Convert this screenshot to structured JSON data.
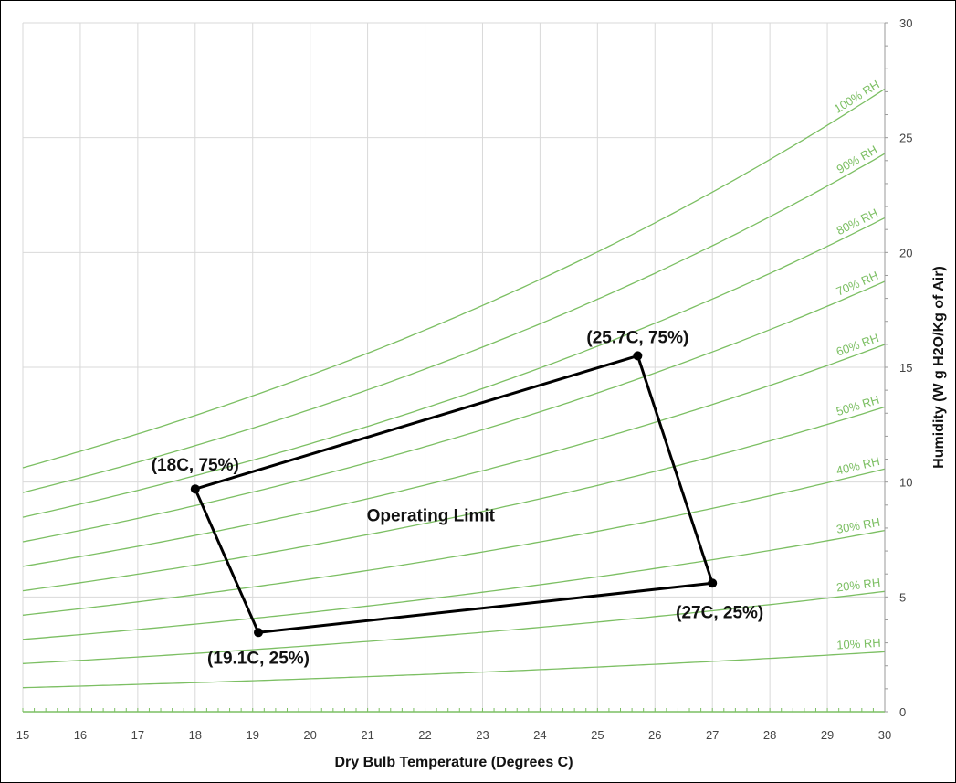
{
  "chart_data": {
    "type": "line",
    "title": "",
    "xlabel": "Dry Bulb Temperature  (Degrees C)",
    "ylabel": "Humidity (W g H2O/Kg of Air)",
    "xlim": [
      15,
      30
    ],
    "ylim": [
      0,
      30
    ],
    "x_ticks": [
      "15",
      "16",
      "17",
      "18",
      "19",
      "20",
      "21",
      "22",
      "23",
      "24",
      "25",
      "26",
      "27",
      "28",
      "29",
      "30"
    ],
    "y_ticks": [
      "0",
      "5",
      "10",
      "15",
      "20",
      "25",
      "30"
    ],
    "grid": true,
    "y_axis_side": "right",
    "curve_color": "#7cbf63",
    "region_color": "#000000",
    "rh_curves": [
      {
        "label": "10% RH",
        "rh": 0.1,
        "values": [
          1.05,
          2.67
        ]
      },
      {
        "label": "20% RH",
        "rh": 0.2,
        "values": [
          2.12,
          5.37
        ]
      },
      {
        "label": "30% RH",
        "rh": 0.3,
        "values": [
          3.18,
          8.1
        ]
      },
      {
        "label": "40% RH",
        "rh": 0.4,
        "values": [
          4.25,
          10.87
        ]
      },
      {
        "label": "50% RH",
        "rh": 0.5,
        "values": [
          5.33,
          13.69
        ]
      },
      {
        "label": "60% RH",
        "rh": 0.6,
        "values": [
          6.4,
          16.53
        ]
      },
      {
        "label": "70% RH",
        "rh": 0.7,
        "values": [
          7.48,
          19.39
        ]
      },
      {
        "label": "80% RH",
        "rh": 0.8,
        "values": [
          8.57,
          22.31
        ]
      },
      {
        "label": "90% RH",
        "rh": 0.9,
        "values": [
          9.65,
          25.25
        ]
      },
      {
        "label": "100% RH",
        "rh": 1.0,
        "values": [
          10.75,
          28.2
        ]
      }
    ],
    "operating_region": {
      "label": "Operating Limit",
      "label_position": {
        "x": 22.1,
        "y": 8.3
      },
      "points": [
        {
          "x": 18.0,
          "y": 9.7,
          "label": "(18C, 75%)"
        },
        {
          "x": 25.7,
          "y": 15.5,
          "label": "(25.7C, 75%)"
        },
        {
          "x": 27.0,
          "y": 5.6,
          "label": "(27C, 25%)"
        },
        {
          "x": 19.1,
          "y": 3.45,
          "label": "(19.1C, 25%)"
        }
      ]
    }
  }
}
